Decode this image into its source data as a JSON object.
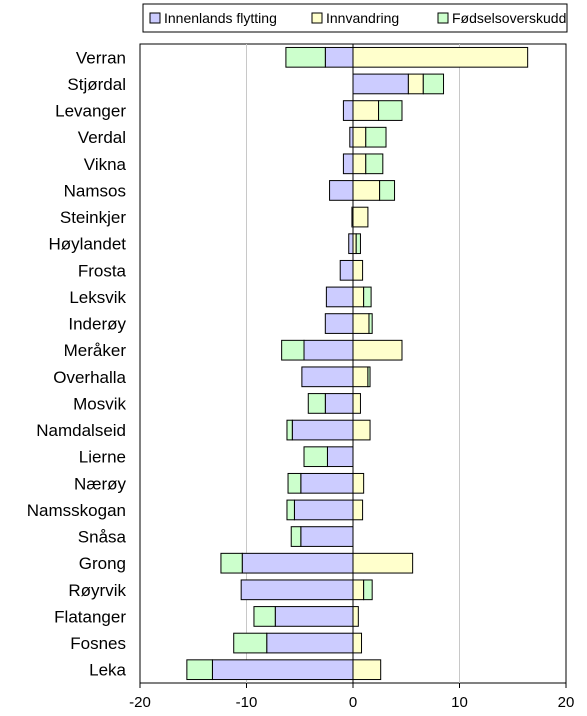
{
  "chart_data": {
    "type": "bar",
    "orientation": "horizontal",
    "stacked": true,
    "title": "",
    "xlabel": "",
    "ylabel": "",
    "xlim": [
      -20,
      20
    ],
    "xticks": [
      -20,
      -10,
      0,
      10,
      20
    ],
    "grid": "vertical",
    "legend": "top",
    "categories": [
      "Verran",
      "Stjørdal",
      "Levanger",
      "Verdal",
      "Vikna",
      "Namsos",
      "Steinkjer",
      "Høylandet",
      "Frosta",
      "Leksvik",
      "Inderøy",
      "Meråker",
      "Overhalla",
      "Mosvik",
      "Namdalseid",
      "Lierne",
      "Nærøy",
      "Namsskogan",
      "Snåsa",
      "Grong",
      "Røyrvik",
      "Flatanger",
      "Fosnes",
      "Leka"
    ],
    "series": [
      {
        "name": "Innenlands flytting",
        "color": "#CCCCFF",
        "values": [
          -2.6,
          5.2,
          -0.9,
          -0.3,
          -0.9,
          -2.2,
          -0.1,
          -0.4,
          -1.2,
          -2.5,
          -2.6,
          -4.6,
          -4.8,
          -2.6,
          -5.7,
          -2.4,
          -4.9,
          -5.5,
          -4.9,
          -10.4,
          -10.5,
          -7.3,
          -8.1,
          -13.2
        ]
      },
      {
        "name": "Innvandring",
        "color": "#FFFFCC",
        "values": [
          16.4,
          1.4,
          2.4,
          1.2,
          1.2,
          2.5,
          1.4,
          0.3,
          0.9,
          1.0,
          1.5,
          4.6,
          1.4,
          0.7,
          1.6,
          0.0,
          1.0,
          0.9,
          0.0,
          5.6,
          1.0,
          0.5,
          0.8,
          2.6
        ]
      },
      {
        "name": "Fødselsoverskudd",
        "color": "#CCFFCC",
        "values": [
          -3.7,
          1.9,
          2.2,
          1.9,
          1.6,
          1.4,
          0.0,
          0.4,
          0.0,
          0.7,
          0.3,
          -2.1,
          0.2,
          -1.6,
          -0.5,
          -2.2,
          -1.2,
          -0.7,
          -0.9,
          -2.0,
          0.8,
          -2.0,
          -3.1,
          -2.4
        ]
      }
    ]
  }
}
